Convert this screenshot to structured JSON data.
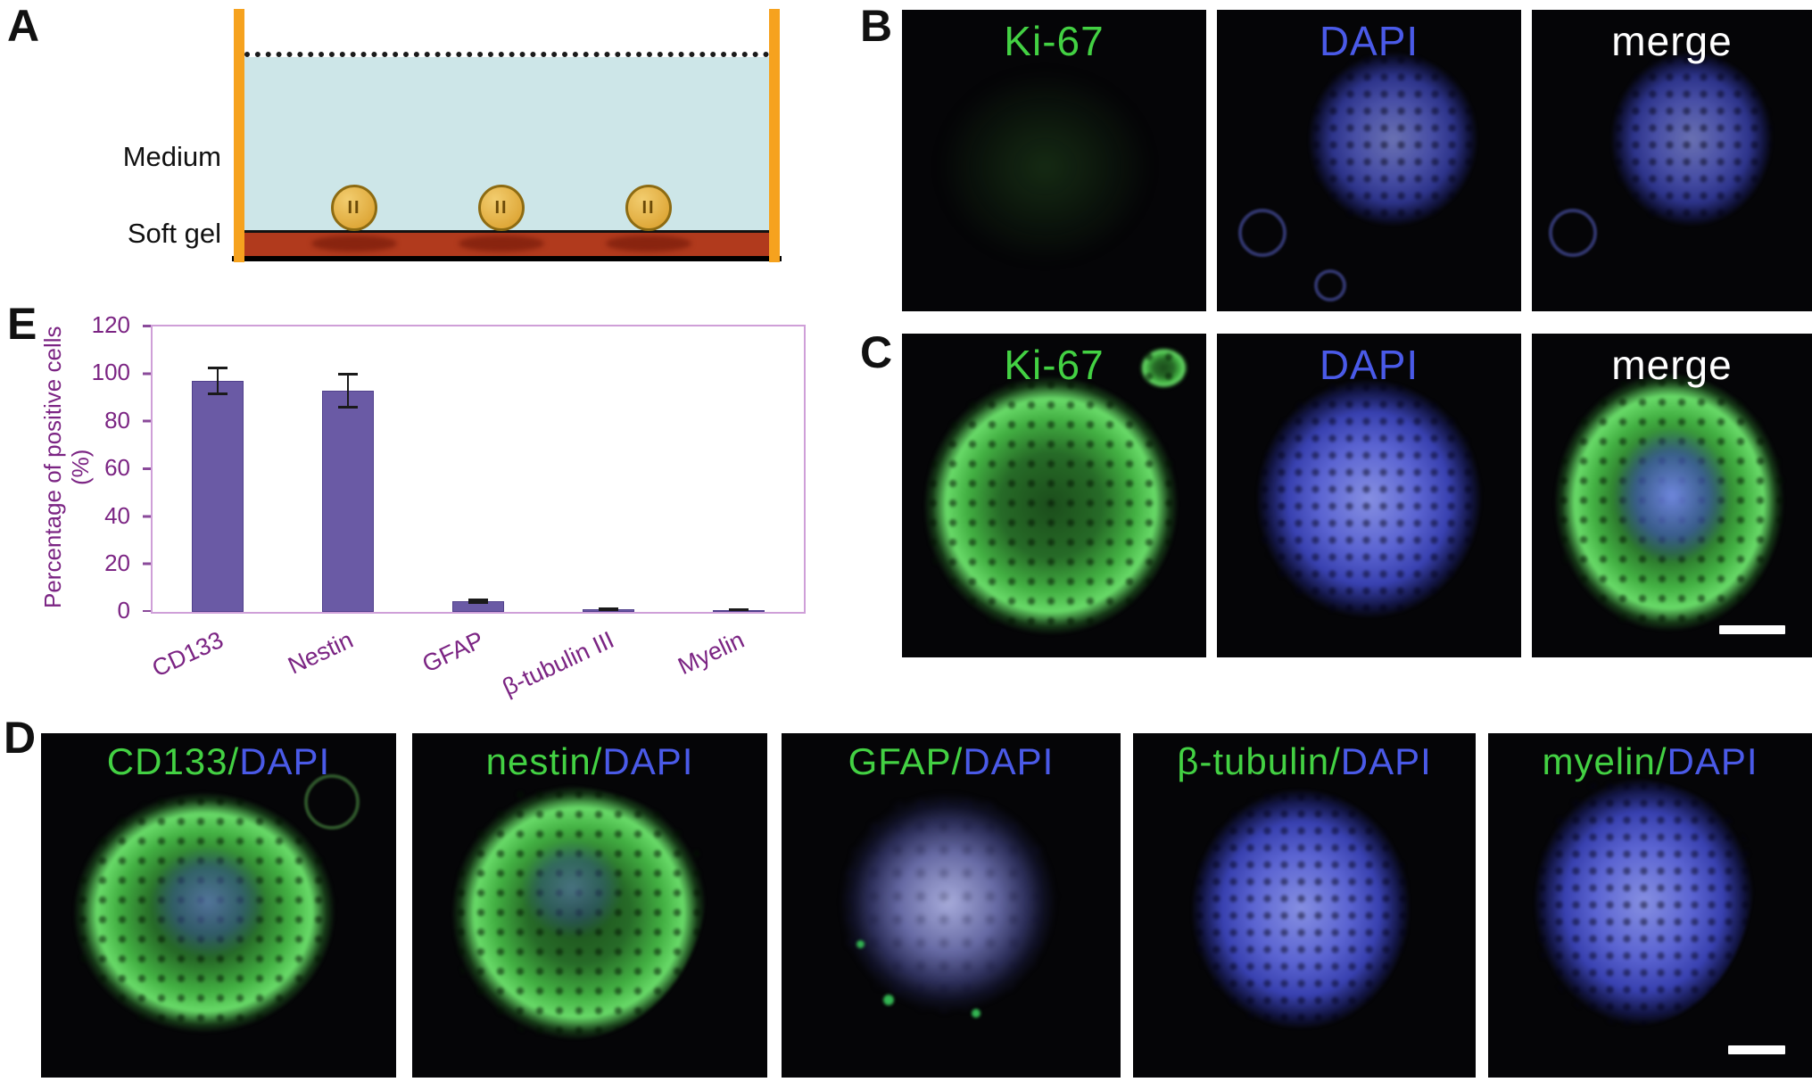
{
  "panels": {
    "a": {
      "label": "A",
      "medium": "Medium",
      "soft_gel": "Soft gel",
      "spheroid_glyph": "II"
    },
    "b": {
      "label": "B",
      "images": [
        {
          "title": "Ki-67"
        },
        {
          "title": "DAPI"
        },
        {
          "title": "merge"
        }
      ]
    },
    "c": {
      "label": "C",
      "images": [
        {
          "title": "Ki-67"
        },
        {
          "title": "DAPI"
        },
        {
          "title": "merge"
        }
      ]
    },
    "d": {
      "label": "D",
      "images": [
        {
          "marker": "CD133/",
          "stain": "DAPI"
        },
        {
          "marker": "nestin/",
          "stain": "DAPI"
        },
        {
          "marker": "GFAP/",
          "stain": "DAPI"
        },
        {
          "marker": "β-tubulin/",
          "stain": "DAPI"
        },
        {
          "marker": "myelin/",
          "stain": "DAPI"
        }
      ]
    },
    "e": {
      "label": "E"
    }
  },
  "colors": {
    "marker_label_green": "#43d143",
    "dapi_label_blue": "#4a5ae8",
    "merge_label_white": "#ffffff",
    "dish_wall_orange": "#f6a21e",
    "medium_fill": "#cde6e8",
    "soft_gel_red": "#b13a1d"
  },
  "chart_data": {
    "type": "bar",
    "categories": [
      "CD133",
      "Nestin",
      "GFAP",
      "β-tubulin III",
      "Myelin"
    ],
    "values": [
      97,
      93,
      4.5,
      1.2,
      0.6
    ],
    "errors": [
      6,
      7.5,
      1.2,
      0.8,
      0.4
    ],
    "title": "",
    "xlabel": "",
    "ylabel": "Percentage of positive cells (%)",
    "ylim": [
      0,
      120
    ],
    "yticks": [
      0,
      20,
      40,
      60,
      80,
      100,
      120
    ],
    "grid": false,
    "legend": false,
    "bar_color": "#6a5aa5",
    "axis_color": "#7b2483"
  }
}
